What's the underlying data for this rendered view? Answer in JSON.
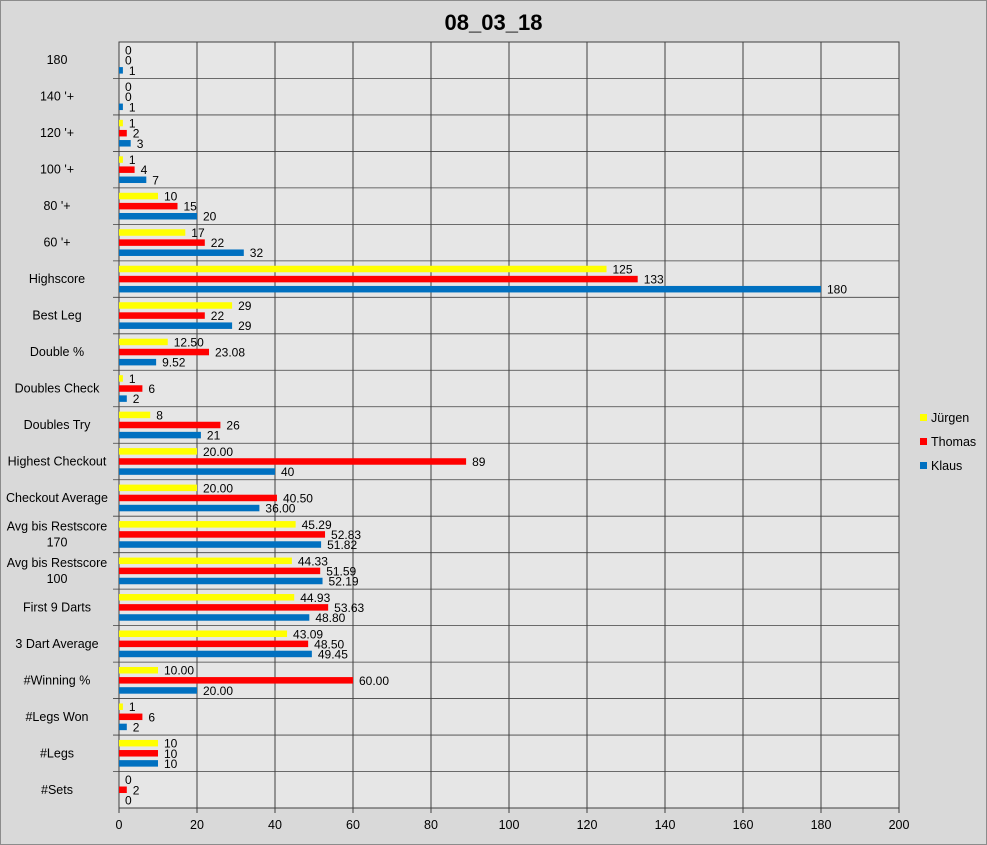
{
  "chart_data": {
    "type": "bar",
    "orientation": "horizontal",
    "title": "08_03_18",
    "xlim": [
      0,
      200
    ],
    "x_ticks": [
      "0",
      "20",
      "40",
      "60",
      "80",
      "100",
      "120",
      "140",
      "160",
      "180",
      "200"
    ],
    "grid": "vertical",
    "legend_position": "right",
    "categories": [
      [
        "180"
      ],
      [
        "140 '+"
      ],
      [
        "120 '+"
      ],
      [
        "100 '+"
      ],
      [
        "80 '+"
      ],
      [
        "60 '+"
      ],
      [
        "Highscore"
      ],
      [
        "Best Leg"
      ],
      [
        "Double %"
      ],
      [
        "Doubles Check"
      ],
      [
        "Doubles Try"
      ],
      [
        "Highest Checkout"
      ],
      [
        "Checkout Average"
      ],
      [
        "Avg bis Restscore",
        "170"
      ],
      [
        "Avg bis Restscore",
        "100"
      ],
      [
        "First 9 Darts"
      ],
      [
        "3 Dart Average"
      ],
      [
        "#Winning %"
      ],
      [
        "#Legs Won"
      ],
      [
        "#Legs"
      ],
      [
        "#Sets"
      ]
    ],
    "series": [
      {
        "name": "Jürgen",
        "color": "#ffff00",
        "values": [
          0,
          0,
          1,
          1,
          10,
          17,
          125,
          29,
          12.5,
          1,
          8,
          20,
          20,
          45.29,
          44.33,
          44.93,
          43.09,
          10,
          1,
          10,
          0
        ],
        "labels": [
          "0",
          "0",
          "1",
          "1",
          "10",
          "17",
          "125",
          "29",
          "12.50",
          "1",
          "8",
          "20.00",
          "20.00",
          "45.29",
          "44.33",
          "44.93",
          "43.09",
          "10.00",
          "1",
          "10",
          "0"
        ]
      },
      {
        "name": "Thomas",
        "color": "#ff0000",
        "values": [
          0,
          0,
          2,
          4,
          15,
          22,
          133,
          22,
          23.08,
          6,
          26,
          89,
          40.5,
          52.83,
          51.59,
          53.63,
          48.5,
          60,
          6,
          10,
          2
        ],
        "labels": [
          "0",
          "0",
          "2",
          "4",
          "15",
          "22",
          "133",
          "22",
          "23.08",
          "6",
          "26",
          "89",
          "40.50",
          "52.83",
          "51.59",
          "53.63",
          "48.50",
          "60.00",
          "6",
          "10",
          "2"
        ]
      },
      {
        "name": "Klaus",
        "color": "#0070c0",
        "values": [
          1,
          1,
          3,
          7,
          20,
          32,
          180,
          29,
          9.52,
          2,
          21,
          40,
          36,
          51.82,
          52.19,
          48.8,
          49.45,
          20,
          2,
          10,
          0
        ],
        "labels": [
          "1",
          "1",
          "3",
          "7",
          "20",
          "32",
          "180",
          "29",
          "9.52",
          "2",
          "21",
          "40",
          "36.00",
          "51.82",
          "52.19",
          "48.80",
          "49.45",
          "20.00",
          "2",
          "10",
          "0"
        ]
      }
    ]
  },
  "colors": {
    "background": "#d9d9d9",
    "plot_area": "#e6e6e6",
    "gridline": "#404040"
  }
}
